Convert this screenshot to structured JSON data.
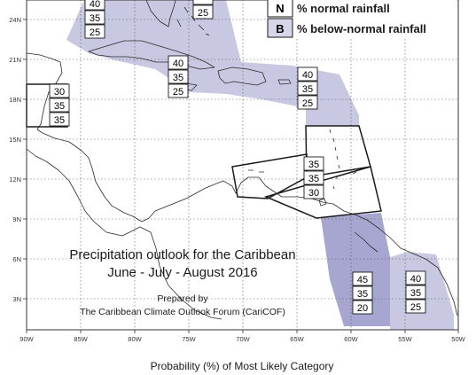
{
  "title_line1": "Precipitation outlook for the Caribbean",
  "title_line2": "June - July - August 2016",
  "prepared_by": "Prepared by",
  "forum": "The Caribbean Climate Outlook Forum (CariCOF)",
  "footer": "Probability (%) of Most Likely Category",
  "legend": [
    {
      "letter": "N",
      "text": "% normal rainfall",
      "color": "#ffffff"
    },
    {
      "letter": "B",
      "text": "% below-normal rainfall",
      "color": "#d6d6ea"
    }
  ],
  "lon_labels": [
    "90W",
    "85W",
    "80W",
    "75W",
    "70W",
    "65W",
    "60W",
    "55W",
    "50W"
  ],
  "lat_labels": [
    "24N",
    "21N",
    "18N",
    "15N",
    "12N",
    "9N",
    "6N",
    "3N"
  ],
  "colors": {
    "below_light": "#c8c8e2",
    "below_dark": "#a6a6d0",
    "coast": "#2b2b2b",
    "grid": "#555555"
  },
  "prob_boxes": [
    {
      "id": "bahamas-top",
      "values": [
        "40",
        "35",
        "25"
      ]
    },
    {
      "id": "bahamas-east",
      "values": [
        "",
        "25"
      ]
    },
    {
      "id": "cuba-jamaica",
      "values": [
        "40",
        "35",
        "25"
      ]
    },
    {
      "id": "eastern-caribbean",
      "values": [
        "40",
        "35",
        "25"
      ]
    },
    {
      "id": "belize",
      "values": [
        "30",
        "35",
        "35"
      ]
    },
    {
      "id": "lesser-antilles-south",
      "values": [
        "35",
        "35",
        "30"
      ]
    },
    {
      "id": "guyana",
      "values": [
        "45",
        "35",
        "20"
      ]
    },
    {
      "id": "northern-brazil",
      "values": [
        "40",
        "35",
        "25"
      ]
    }
  ]
}
